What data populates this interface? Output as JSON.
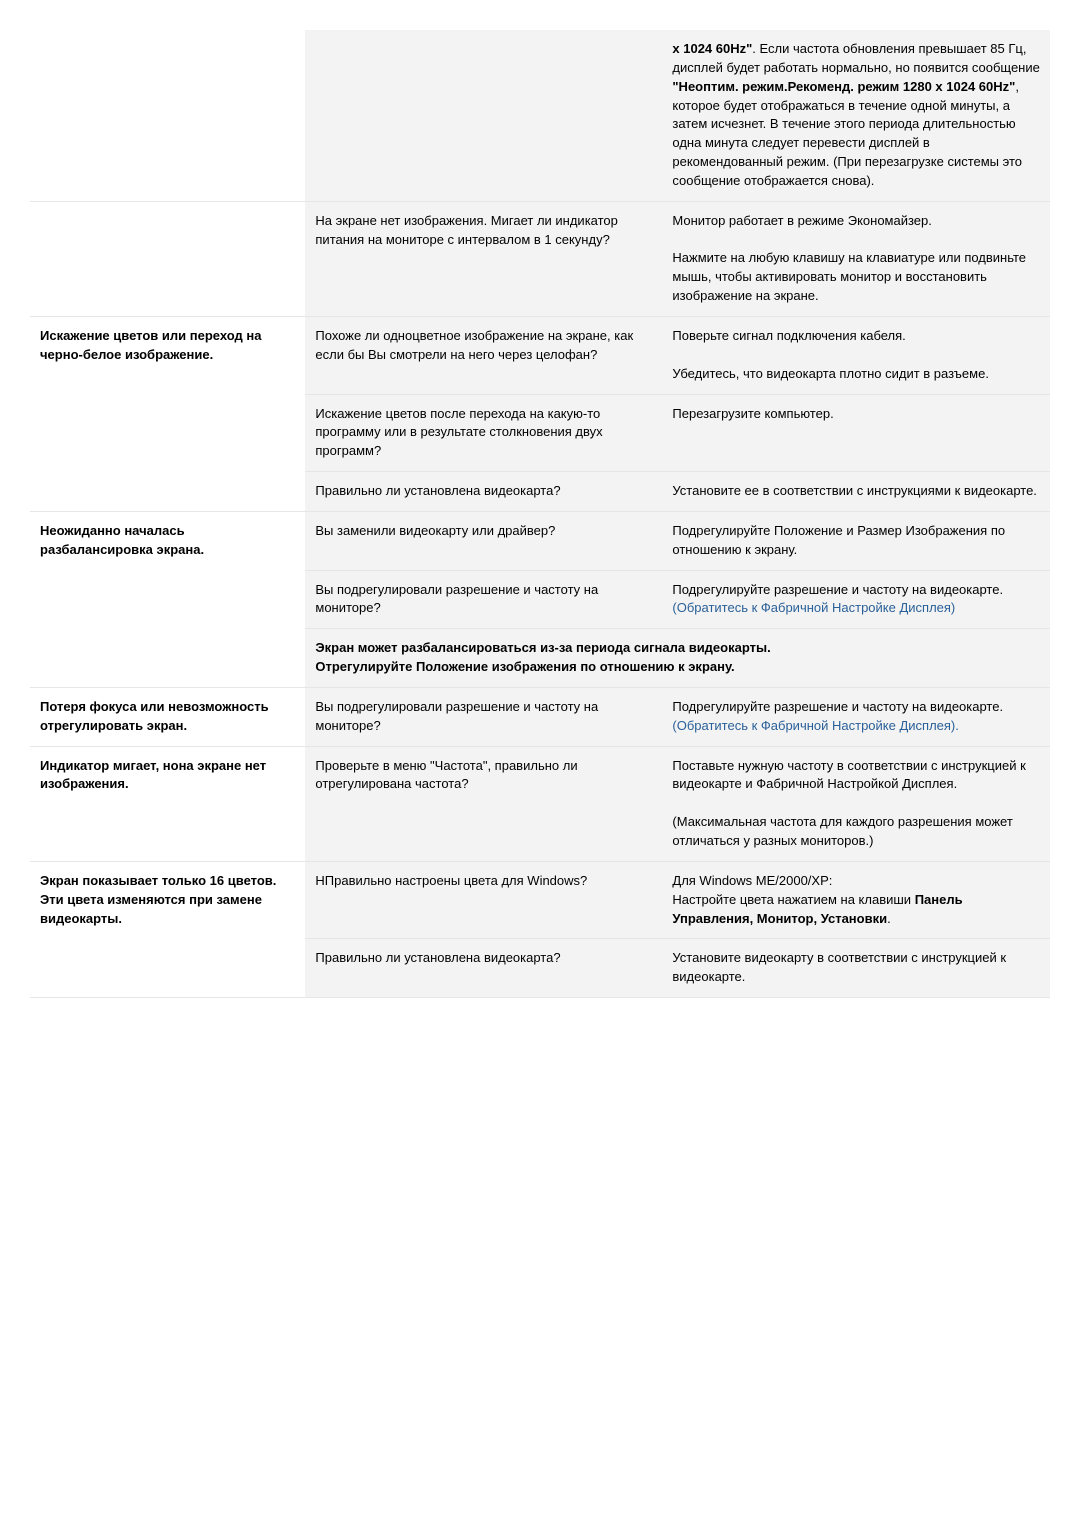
{
  "rows": [
    {
      "c1": {
        "text": "",
        "bold": true
      },
      "c2": {
        "text": ""
      },
      "c3": {
        "html": "<b>x 1024 60Hz\"</b>. Если частота обновления превышает 85 Гц, дисплей будет работать нормально, но появится сообщение <b>\"Неоптим. режим.Рекоменд. режим 1280 x 1024 60Hz\"</b>, которое будет отображаться в течение одной минуты, а затем исчезнет. В течение этого периода длительностью одна минута следует перевести дисплей в рекомендованный режим. (При перезагрузке системы это сообщение отображается снова)."
      }
    },
    {
      "c1": {
        "text": "",
        "bold": true
      },
      "c2": {
        "text": "На экране нет изображения. Мигает ли индикатор питания на мониторе с интервалом в 1 секунду?"
      },
      "c3": {
        "html": "Монитор работает в режиме Экономайзер.<br><br>Нажмите на любую клавишу на клавиатуре или подвиньте мышь, чтобы активировать монитор и восстановить изображение на экране."
      }
    },
    {
      "c1": {
        "text": "Искажение цветов или переход на черно-белое изображение.",
        "bold": true,
        "rowspan": 3
      },
      "c2": {
        "text": "Похоже ли одноцветное изображение на экране, как если бы Вы смотрели на него через целофан?"
      },
      "c3": {
        "html": "Поверьте сигнал подключения кабеля.<br><br>Убедитесь, что видеокарта плотно сидит в разъеме."
      }
    },
    {
      "c2": {
        "text": "Искажение цветов после перехода на какую-то программу или в результате столкновения двух программ?"
      },
      "c3": {
        "html": "Перезагрузите компьютер."
      }
    },
    {
      "c2": {
        "text": "Правильно ли установлена видеокарта?"
      },
      "c3": {
        "html": "Установите ее в соответствии с инструкциями к видеокарте."
      }
    },
    {
      "c1": {
        "text": "Неожиданно началась разбалансировка экрана.",
        "bold": true,
        "rowspan": 3
      },
      "c2": {
        "text": "Вы заменили видеокарту или драйвер?"
      },
      "c3": {
        "html": "Подрегулируйте Положение и Размер Изображения по отношению к экрану."
      }
    },
    {
      "c2": {
        "text": "Вы подрегулировали разрешение и частоту на мониторе?"
      },
      "c3": {
        "html": "Подрегулируйте разрешение и частоту на видеокарте.<br><span class=\"blue\">(Обратитесь к Фабричной Настройке Дисплея)</span>"
      }
    },
    {
      "merged": {
        "html": "Экран может разбалансироваться из-за периода сигнала видеокарты.<br>Отрегулируйте Положение изображения по отношению к экрану."
      }
    },
    {
      "c1": {
        "text": "Потеря фокуса или невозможность отрегулировать экран.",
        "bold": true
      },
      "c2": {
        "text": "Вы подрегулировали разрешение и частоту на мониторе?"
      },
      "c3": {
        "html": "Подрегулируйте разрешение и частоту на видеокарте.<br><span class=\"blue\">(Обратитесь к Фабричной Настройке Дисплея).</span>"
      }
    },
    {
      "c1": {
        "text": "Индикатор мигает, нона экране нет изображения.",
        "bold": true
      },
      "c2": {
        "text": "Проверьте в меню \"Частота\", правильно ли отрегулирована частота?"
      },
      "c3": {
        "html": "Поставьте нужную частоту в соответствии с инструкцией к видеокарте и Фабричной Настройкой Дисплея.<br><br>(Максимальная частота для каждого разрешения может отличаться у разных мониторов.)"
      }
    },
    {
      "c1": {
        "text": "Экран показывает только 16 цветов. Эти цвета изменяются при замене видеокарты.",
        "bold": true,
        "rowspan": 2
      },
      "c2": {
        "text": "НПравильно настроены цвета для Windows?"
      },
      "c3": {
        "html": "Для Windows ME/2000/XP:<br>Настройте цвета нажатием на клавиши <b>Панель Управления, Монитор, Установки</b>."
      }
    },
    {
      "c2": {
        "text": "Правильно ли установлена видеокарта?"
      },
      "c3": {
        "html": "Установите видеокарту в соответствии с инструкцией к видеокарте."
      }
    }
  ]
}
